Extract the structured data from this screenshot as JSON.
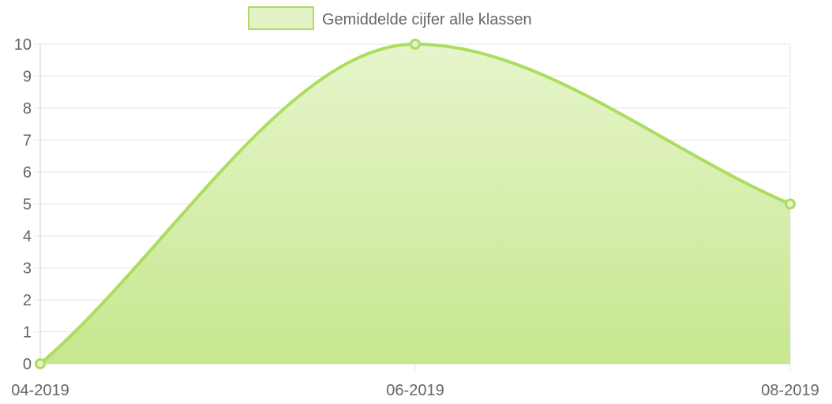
{
  "chart_data": {
    "type": "area",
    "title": "",
    "xlabel": "",
    "ylabel": "",
    "categories": [
      "04-2019",
      "06-2019",
      "08-2019"
    ],
    "series": [
      {
        "name": "Gemiddelde cijfer alle klassen",
        "values": [
          0,
          10,
          5
        ]
      }
    ],
    "ylim": [
      0,
      10
    ],
    "yticks": [
      "0",
      "1",
      "2",
      "3",
      "4",
      "5",
      "6",
      "7",
      "8",
      "9",
      "10"
    ],
    "grid": true,
    "legend_position": "top",
    "colors": {
      "line": "#acdd5f",
      "fill_top": "#e6f5cc",
      "fill_bottom": "#c7e78e",
      "legend_fill": "#e3f3c5",
      "grid": "#e5e5e5",
      "text": "#666666"
    }
  }
}
